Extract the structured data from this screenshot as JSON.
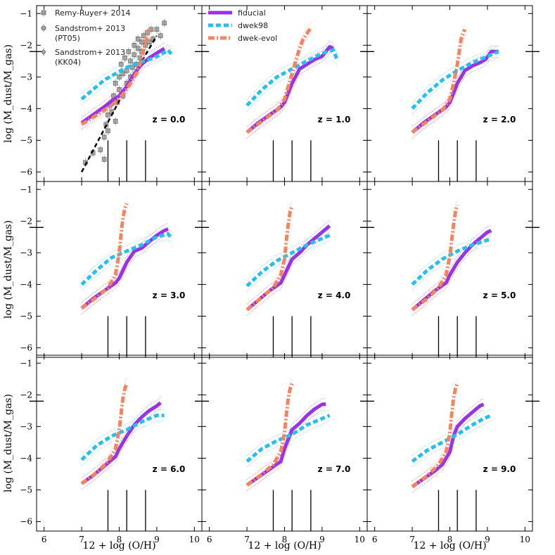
{
  "figure": {
    "xlabel": "12 + log (O/H)",
    "ylabel": "log (M_dust/M_gas)",
    "xlim": [
      5.8,
      10.2
    ],
    "ylim": [
      -6.3,
      -0.75
    ],
    "xticks": [
      6,
      7,
      8,
      9,
      10
    ],
    "yticks": [
      -1,
      -2,
      -3,
      -4,
      -5,
      -6
    ],
    "grid": false,
    "colors": {
      "fiducial": "#9b30e6",
      "dwek98": "#25c0f0",
      "dwek_evol": "#f4845f",
      "data_points": "#888888",
      "fit_line": "#000000"
    }
  },
  "legends": {
    "observations": [
      {
        "label": "Remy-Ruyer+ 2014",
        "marker": "square"
      },
      {
        "label": "Sandstrom+ 2013",
        "label2": "(PT05)",
        "marker": "circle"
      },
      {
        "label": "Sandstrom+ 2013",
        "label2": "(KK04)",
        "marker": "diamond"
      }
    ],
    "models": [
      {
        "label": "fiducial",
        "color": "#9b30e6",
        "style": "solid"
      },
      {
        "label": "dwek98",
        "color": "#25c0f0",
        "style": "dashed"
      },
      {
        "label": "dwek-evol",
        "color": "#f4845f",
        "style": "dashdot"
      }
    ]
  },
  "chart_data": {
    "type": "line",
    "reference_vertical_lines_x": [
      7.7,
      8.2,
      8.7
    ],
    "reference_vertical_line_yrange": [
      -6.3,
      -5.0
    ],
    "solar_dtg_marker_y": -2.2,
    "panels": [
      {
        "z_label": "z = 0.0",
        "observations": true,
        "fit_line": {
          "x": [
            7.0,
            8.2,
            9.0
          ],
          "y": [
            -6.0,
            -3.3,
            -1.7
          ]
        },
        "observed_points": [
          [
            7.1,
            -5.7
          ],
          [
            7.3,
            -5.4
          ],
          [
            7.5,
            -5.3
          ],
          [
            7.6,
            -5.6
          ],
          [
            7.6,
            -4.9
          ],
          [
            7.65,
            -4.5
          ],
          [
            7.7,
            -4.2
          ],
          [
            7.7,
            -4.7
          ],
          [
            7.75,
            -3.9
          ],
          [
            7.8,
            -4.1
          ],
          [
            7.85,
            -3.6
          ],
          [
            7.9,
            -4.4
          ],
          [
            7.9,
            -3.2
          ],
          [
            7.95,
            -3.8
          ],
          [
            8.0,
            -3.0
          ],
          [
            8.0,
            -3.4
          ],
          [
            8.05,
            -2.6
          ],
          [
            8.1,
            -2.9
          ],
          [
            8.1,
            -3.6
          ],
          [
            8.15,
            -2.4
          ],
          [
            8.2,
            -2.8
          ],
          [
            8.2,
            -3.2
          ],
          [
            8.25,
            -2.2
          ],
          [
            8.3,
            -2.5
          ],
          [
            8.3,
            -3.0
          ],
          [
            8.35,
            -2.7
          ],
          [
            8.4,
            -2.0
          ],
          [
            8.4,
            -2.3
          ],
          [
            8.45,
            -2.6
          ],
          [
            8.5,
            -2.1
          ],
          [
            8.5,
            -1.8
          ],
          [
            8.55,
            -2.4
          ],
          [
            8.6,
            -1.9
          ],
          [
            8.6,
            -2.2
          ],
          [
            8.65,
            -1.7
          ],
          [
            8.7,
            -2.0
          ],
          [
            8.75,
            -1.6
          ],
          [
            8.8,
            -1.9
          ],
          [
            8.85,
            -1.5
          ],
          [
            8.9,
            -1.8
          ],
          [
            9.0,
            -1.5
          ],
          [
            9.1,
            -1.7
          ],
          [
            9.2,
            -1.3
          ]
        ],
        "series": [
          {
            "name": "fiducial",
            "x": [
              7.0,
              7.3,
              7.6,
              7.8,
              8.0,
              8.2,
              8.4,
              8.6,
              8.8,
              9.0,
              9.2
            ],
            "y": [
              -4.45,
              -4.2,
              -3.95,
              -3.75,
              -3.6,
              -3.3,
              -2.9,
              -2.6,
              -2.4,
              -2.25,
              -2.1
            ]
          },
          {
            "name": "dwek98",
            "x": [
              7.0,
              7.3,
              7.6,
              7.9,
              8.2,
              8.5,
              8.8,
              9.1,
              9.3,
              9.4
            ],
            "y": [
              -3.7,
              -3.4,
              -3.1,
              -2.9,
              -2.7,
              -2.55,
              -2.45,
              -2.3,
              -2.15,
              -2.3
            ]
          },
          {
            "name": "dwek-evol",
            "x": [
              7.0,
              7.4,
              7.8,
              8.1,
              8.3,
              8.5,
              8.6,
              8.7,
              8.8
            ],
            "y": [
              -4.5,
              -4.2,
              -3.9,
              -3.55,
              -3.2,
              -2.8,
              -2.4,
              -1.9,
              -1.5
            ]
          }
        ]
      },
      {
        "z_label": "z = 1.0",
        "series": [
          {
            "name": "fiducial",
            "x": [
              7.0,
              7.3,
              7.6,
              7.9,
              8.0,
              8.2,
              8.4,
              8.6,
              8.8,
              9.0,
              9.2,
              9.3
            ],
            "y": [
              -4.75,
              -4.45,
              -4.2,
              -3.95,
              -3.8,
              -3.2,
              -2.75,
              -2.6,
              -2.45,
              -2.35,
              -2.05,
              -2.1
            ]
          },
          {
            "name": "dwek98",
            "x": [
              7.0,
              7.4,
              7.8,
              8.2,
              8.6,
              9.0,
              9.3,
              9.4
            ],
            "y": [
              -3.9,
              -3.4,
              -3.0,
              -2.75,
              -2.5,
              -2.25,
              -2.15,
              -2.45
            ]
          },
          {
            "name": "dwek-evol",
            "x": [
              7.0,
              7.4,
              7.8,
              8.0,
              8.1,
              8.2,
              8.3,
              8.4,
              8.5,
              8.7
            ],
            "y": [
              -4.75,
              -4.4,
              -4.05,
              -3.7,
              -3.3,
              -2.9,
              -2.5,
              -2.1,
              -1.8,
              -1.45
            ]
          }
        ]
      },
      {
        "z_label": "z = 2.0",
        "series": [
          {
            "name": "fiducial",
            "x": [
              7.0,
              7.3,
              7.6,
              7.9,
              8.0,
              8.2,
              8.4,
              8.6,
              8.8,
              8.95,
              9.1,
              9.3
            ],
            "y": [
              -4.75,
              -4.45,
              -4.2,
              -3.95,
              -3.8,
              -3.2,
              -2.8,
              -2.65,
              -2.55,
              -2.45,
              -2.2,
              -2.2
            ]
          },
          {
            "name": "dwek98",
            "x": [
              7.0,
              7.4,
              7.8,
              8.2,
              8.6,
              9.0,
              9.3
            ],
            "y": [
              -4.0,
              -3.5,
              -3.1,
              -2.8,
              -2.55,
              -2.35,
              -2.2
            ]
          },
          {
            "name": "dwek-evol",
            "x": [
              7.0,
              7.4,
              7.8,
              8.0,
              8.1,
              8.2,
              8.25,
              8.3,
              8.4
            ],
            "y": [
              -4.75,
              -4.4,
              -4.05,
              -3.7,
              -3.2,
              -2.6,
              -2.2,
              -1.8,
              -1.5
            ]
          }
        ]
      },
      {
        "z_label": "z = 3.0",
        "series": [
          {
            "name": "fiducial",
            "x": [
              7.0,
              7.3,
              7.6,
              7.9,
              8.0,
              8.2,
              8.4,
              8.6,
              8.8,
              9.0,
              9.2,
              9.3
            ],
            "y": [
              -4.75,
              -4.45,
              -4.2,
              -3.95,
              -3.8,
              -3.3,
              -2.95,
              -2.85,
              -2.65,
              -2.45,
              -2.3,
              -2.25
            ]
          },
          {
            "name": "dwek98",
            "x": [
              7.0,
              7.4,
              7.8,
              8.2,
              8.6,
              9.0,
              9.3,
              9.4
            ],
            "y": [
              -4.0,
              -3.55,
              -3.15,
              -2.95,
              -2.75,
              -2.5,
              -2.4,
              -2.55
            ]
          },
          {
            "name": "dwek-evol",
            "x": [
              7.0,
              7.4,
              7.7,
              7.9,
              8.0,
              8.05,
              8.1,
              8.15,
              8.2
            ],
            "y": [
              -4.75,
              -4.4,
              -4.1,
              -3.7,
              -3.0,
              -2.4,
              -1.9,
              -1.6,
              -1.45
            ]
          }
        ]
      },
      {
        "z_label": "z = 4.0",
        "series": [
          {
            "name": "fiducial",
            "x": [
              7.0,
              7.3,
              7.6,
              7.9,
              8.0,
              8.2,
              8.4,
              8.6,
              8.8,
              9.0,
              9.2
            ],
            "y": [
              -4.8,
              -4.5,
              -4.2,
              -3.95,
              -3.7,
              -3.2,
              -3.0,
              -2.75,
              -2.55,
              -2.35,
              -2.15
            ]
          },
          {
            "name": "dwek98",
            "x": [
              7.0,
              7.4,
              7.8,
              8.2,
              8.6,
              9.0,
              9.2
            ],
            "y": [
              -4.05,
              -3.6,
              -3.25,
              -3.0,
              -2.75,
              -2.55,
              -2.45
            ]
          },
          {
            "name": "dwek-evol",
            "x": [
              7.0,
              7.4,
              7.7,
              7.9,
              8.0,
              8.05,
              8.1,
              8.15,
              8.2
            ],
            "y": [
              -4.8,
              -4.4,
              -4.1,
              -3.7,
              -3.2,
              -2.6,
              -2.1,
              -1.7,
              -1.55
            ]
          }
        ]
      },
      {
        "z_label": "z = 5.0",
        "series": [
          {
            "name": "fiducial",
            "x": [
              7.0,
              7.3,
              7.6,
              7.9,
              8.0,
              8.2,
              8.4,
              8.6,
              8.8,
              9.0,
              9.1
            ],
            "y": [
              -4.8,
              -4.5,
              -4.2,
              -3.95,
              -3.7,
              -3.3,
              -3.0,
              -2.75,
              -2.55,
              -2.35,
              -2.3
            ]
          },
          {
            "name": "dwek98",
            "x": [
              7.0,
              7.4,
              7.8,
              8.2,
              8.6,
              9.0,
              9.1
            ],
            "y": [
              -4.0,
              -3.55,
              -3.2,
              -2.95,
              -2.75,
              -2.6,
              -2.6
            ]
          },
          {
            "name": "dwek-evol",
            "x": [
              7.0,
              7.4,
              7.7,
              7.9,
              8.0,
              8.05,
              8.1,
              8.15,
              8.2
            ],
            "y": [
              -4.8,
              -4.45,
              -4.1,
              -3.7,
              -3.1,
              -2.6,
              -2.1,
              -1.7,
              -1.5
            ]
          }
        ]
      },
      {
        "z_label": "z = 6.0",
        "series": [
          {
            "name": "fiducial",
            "x": [
              7.0,
              7.3,
              7.6,
              7.9,
              8.0,
              8.2,
              8.4,
              8.6,
              8.8,
              9.0,
              9.1
            ],
            "y": [
              -4.8,
              -4.55,
              -4.25,
              -3.95,
              -3.7,
              -3.3,
              -2.95,
              -2.7,
              -2.5,
              -2.35,
              -2.25
            ]
          },
          {
            "name": "dwek98",
            "x": [
              7.0,
              7.4,
              7.8,
              8.2,
              8.6,
              9.0,
              9.2
            ],
            "y": [
              -4.05,
              -3.6,
              -3.3,
              -3.1,
              -2.85,
              -2.65,
              -2.65
            ]
          },
          {
            "name": "dwek-evol",
            "x": [
              7.0,
              7.4,
              7.7,
              7.9,
              8.0,
              8.05,
              8.1,
              8.15,
              8.2
            ],
            "y": [
              -4.8,
              -4.45,
              -4.1,
              -3.7,
              -3.1,
              -2.6,
              -2.1,
              -1.8,
              -1.65
            ]
          }
        ]
      },
      {
        "z_label": "z = 7.0",
        "series": [
          {
            "name": "fiducial",
            "x": [
              7.0,
              7.3,
              7.6,
              7.9,
              8.0,
              8.2,
              8.4,
              8.6,
              8.8,
              9.0,
              9.1
            ],
            "y": [
              -4.85,
              -4.6,
              -4.35,
              -4.1,
              -3.7,
              -3.1,
              -2.9,
              -2.65,
              -2.45,
              -2.3,
              -2.3
            ]
          },
          {
            "name": "dwek98",
            "x": [
              7.0,
              7.4,
              7.8,
              8.2,
              8.6,
              9.0,
              9.2
            ],
            "y": [
              -4.1,
              -3.7,
              -3.45,
              -3.25,
              -2.95,
              -2.75,
              -2.65
            ]
          },
          {
            "name": "dwek-evol",
            "x": [
              7.0,
              7.4,
              7.7,
              7.9,
              8.0,
              8.05,
              8.1,
              8.15,
              8.2
            ],
            "y": [
              -4.85,
              -4.5,
              -4.2,
              -3.8,
              -3.2,
              -2.6,
              -2.1,
              -1.8,
              -1.65
            ]
          }
        ]
      },
      {
        "z_label": "z = 9.0",
        "series": [
          {
            "name": "fiducial",
            "x": [
              7.0,
              7.3,
              7.6,
              7.8,
              8.0,
              8.1,
              8.2,
              8.4,
              8.6,
              8.8,
              8.9
            ],
            "y": [
              -4.9,
              -4.65,
              -4.4,
              -4.2,
              -3.8,
              -3.3,
              -3.0,
              -2.75,
              -2.55,
              -2.35,
              -2.3
            ]
          },
          {
            "name": "dwek98",
            "x": [
              7.0,
              7.4,
              7.8,
              8.2,
              8.6,
              8.9,
              9.1
            ],
            "y": [
              -4.1,
              -3.75,
              -3.5,
              -3.25,
              -2.95,
              -2.75,
              -2.65
            ]
          },
          {
            "name": "dwek-evol",
            "x": [
              7.0,
              7.4,
              7.7,
              7.9,
              8.0,
              8.05,
              8.1,
              8.15,
              8.2
            ],
            "y": [
              -4.9,
              -4.55,
              -4.2,
              -3.8,
              -3.2,
              -2.6,
              -2.1,
              -1.8,
              -1.65
            ]
          }
        ]
      }
    ]
  }
}
